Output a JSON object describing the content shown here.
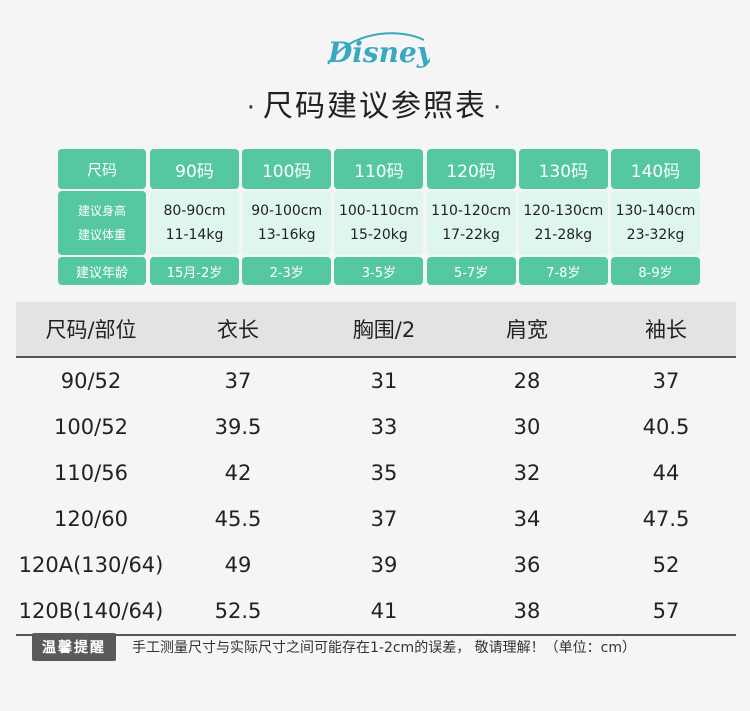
{
  "brand": {
    "logo_text": "Disney",
    "logo_color": "#3aa8c1"
  },
  "title": {
    "text": "尺码建议参照表",
    "dot_left": "·",
    "dot_right": "·"
  },
  "recommend": {
    "label_size": "尺码",
    "label_height": "建议身高",
    "label_weight": "建议体重",
    "label_age": "建议年龄",
    "columns": [
      {
        "size": "90码",
        "height": "80-90cm",
        "weight": "11-14kg",
        "age": "15月-2岁"
      },
      {
        "size": "100码",
        "height": "90-100cm",
        "weight": "13-16kg",
        "age": "2-3岁"
      },
      {
        "size": "110码",
        "height": "100-110cm",
        "weight": "15-20kg",
        "age": "3-5岁"
      },
      {
        "size": "120码",
        "height": "110-120cm",
        "weight": "17-22kg",
        "age": "5-7岁"
      },
      {
        "size": "130码",
        "height": "120-130cm",
        "weight": "21-28kg",
        "age": "7-8岁"
      },
      {
        "size": "140码",
        "height": "130-140cm",
        "weight": "23-32kg",
        "age": "8-9岁"
      }
    ],
    "accent_color": "#55c7a3",
    "light_color": "#dff6ee"
  },
  "size_table": {
    "headers": [
      "尺码/部位",
      "衣长",
      "胸围/2",
      "肩宽",
      "袖长"
    ],
    "rows": [
      [
        "90/52",
        "37",
        "31",
        "28",
        "37"
      ],
      [
        "100/52",
        "39.5",
        "33",
        "30",
        "40.5"
      ],
      [
        "110/56",
        "42",
        "35",
        "32",
        "44"
      ],
      [
        "120/60",
        "45.5",
        "37",
        "34",
        "47.5"
      ],
      [
        "120A(130/64)",
        "49",
        "39",
        "36",
        "52"
      ],
      [
        "120B(140/64)",
        "52.5",
        "41",
        "38",
        "57"
      ]
    ]
  },
  "note": {
    "badge": "温馨提醒",
    "text": "手工测量尺寸与实际尺寸之间可能存在1-2cm的误差， 敬请理解！（单位：cm）"
  }
}
